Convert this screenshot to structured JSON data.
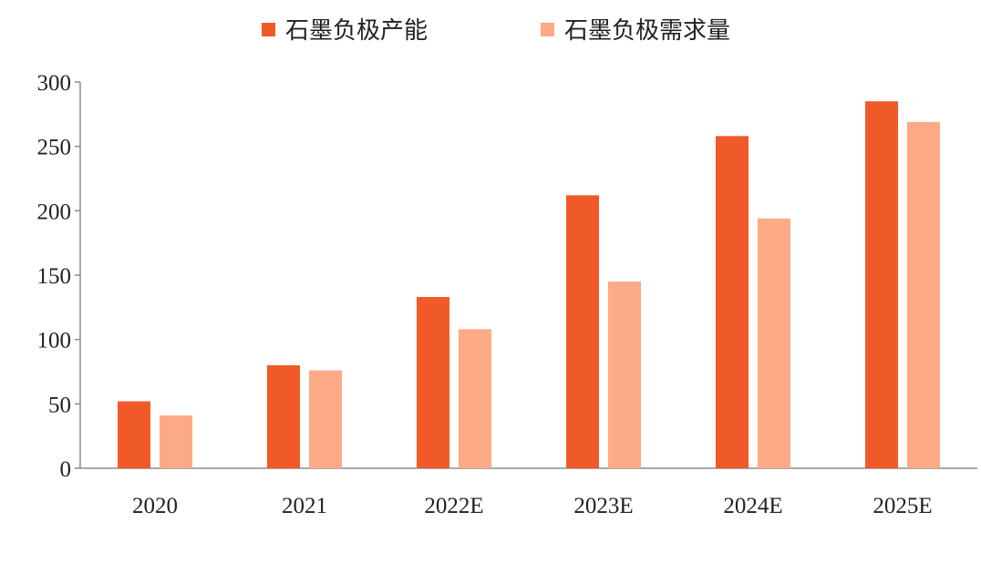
{
  "chart_data": {
    "type": "bar",
    "categories": [
      "2020",
      "2021",
      "2022E",
      "2023E",
      "2024E",
      "2025E"
    ],
    "series": [
      {
        "name": "石墨负极产能",
        "color": "#F05A28",
        "values": [
          52,
          80,
          133,
          212,
          258,
          285
        ]
      },
      {
        "name": "石墨负极需求量",
        "color": "#FDAA87",
        "values": [
          41,
          76,
          108,
          145,
          194,
          269
        ]
      }
    ],
    "yticks": [
      0,
      50,
      100,
      150,
      200,
      250,
      300
    ],
    "ylim": [
      0,
      300
    ],
    "grid": false,
    "legend_position": "top-center",
    "title": "",
    "xlabel": "",
    "ylabel": ""
  }
}
